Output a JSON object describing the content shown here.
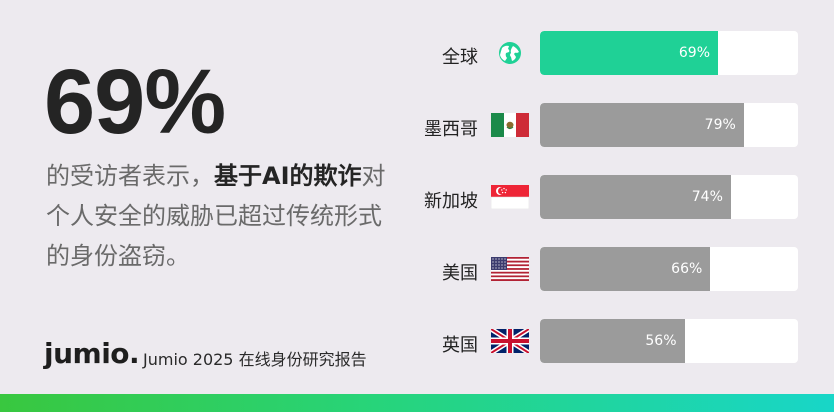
{
  "hero": {
    "percent": "69%",
    "desc_part1": "的受访者表示，",
    "desc_bold": "基于AI的欺诈",
    "desc_part2": "对个人安全的威胁已超过传统形式的身份盗窃。"
  },
  "footer": {
    "brand": "jumio.",
    "report": "Jumio 2025 在线身份研究报告"
  },
  "colors": {
    "highlight": "#1fd196",
    "neutral_bar": "#9b9b9b",
    "track": "#ffffff",
    "background": "#edeaef"
  },
  "chart_data": {
    "type": "bar",
    "orientation": "horizontal",
    "categories": [
      "全球",
      "墨西哥",
      "新加坡",
      "美国",
      "英国"
    ],
    "values": [
      69,
      79,
      74,
      66,
      56
    ],
    "value_labels": [
      "69%",
      "79%",
      "74%",
      "66%",
      "56%"
    ],
    "flags": [
      "globe-icon",
      "mexico-flag-icon",
      "singapore-flag-icon",
      "usa-flag-icon",
      "uk-flag-icon"
    ],
    "xlim": [
      0,
      100
    ],
    "title": "",
    "xlabel": "",
    "ylabel": "",
    "grid": false,
    "highlight_category": "全球"
  }
}
